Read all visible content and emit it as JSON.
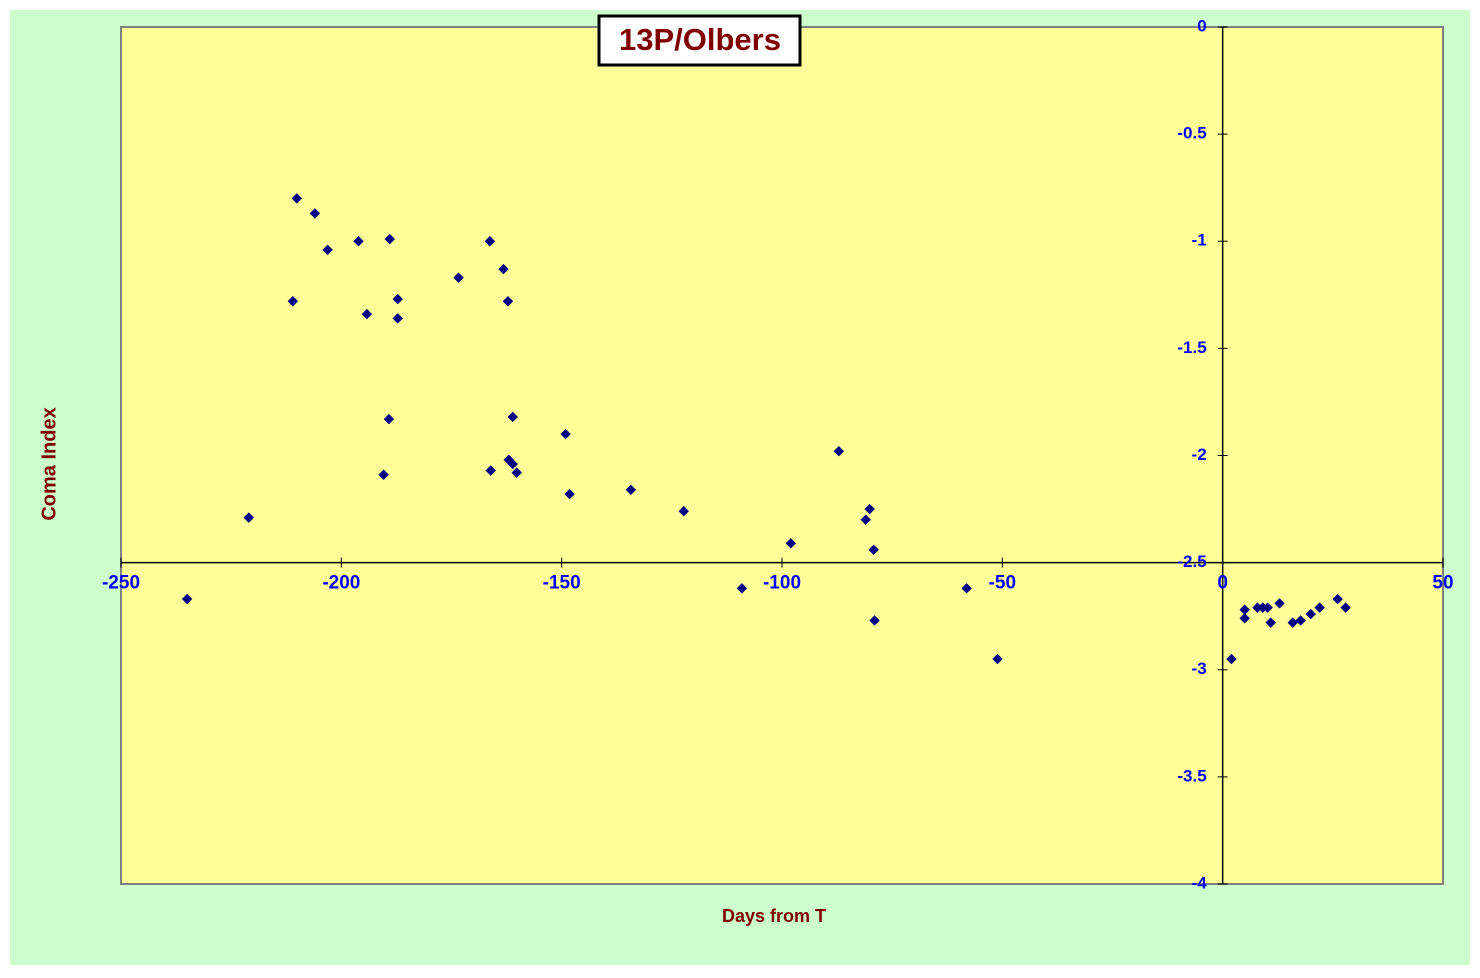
{
  "chart_data": {
    "type": "scatter",
    "title": "13P/Olbers",
    "x_label": "Days from T",
    "y_label": "Coma Index",
    "xlim": [
      -250,
      50
    ],
    "ylim": [
      -4,
      0
    ],
    "xticks": [
      -250,
      -200,
      -150,
      -100,
      -50,
      0,
      50
    ],
    "yticks": [
      0,
      -0.5,
      -1,
      -1.5,
      -2,
      -2.5,
      -3,
      -3.5,
      -4
    ],
    "x_axis_crosses_y": -2.5,
    "y_axis_crosses_x": 0,
    "series": [
      {
        "color": "#000080",
        "x": [
          -235,
          -221,
          -211,
          -210.1,
          -206,
          -203.1,
          -196.1,
          -194.2,
          -190.4,
          -189.2,
          -189,
          -187.2,
          -187.2,
          -173.4,
          -166.3,
          -166.1,
          -163.2,
          -162.2,
          -162,
          -161.1,
          -161.1,
          -160.2,
          -149.1,
          -148.2,
          -134.3,
          -122.3,
          -109.1,
          -98,
          -87.1,
          -81,
          -80.1,
          -79.2,
          -79,
          -58.1,
          -51.1,
          2,
          5,
          5,
          7.9,
          9.1,
          10.2,
          10.9,
          12.9,
          15.9,
          17.7,
          20,
          22,
          26.1,
          27.9
        ],
        "values": [
          -2.67,
          -2.29,
          -1.28,
          -0.8,
          -0.87,
          -1.04,
          -1,
          -1.34,
          -2.09,
          -1.83,
          -0.99,
          -1.27,
          -1.36,
          -1.17,
          -1,
          -2.07,
          -1.13,
          -1.28,
          -2.02,
          -2.04,
          -1.82,
          -2.08,
          -1.9,
          -2.18,
          -2.16,
          -2.26,
          -2.62,
          -2.41,
          -1.98,
          -2.3,
          -2.25,
          -2.44,
          -2.77,
          -2.62,
          -2.95,
          -2.95,
          -2.72,
          -2.76,
          -2.71,
          -2.71,
          -2.71,
          -2.78,
          -2.69,
          -2.78,
          -2.77,
          -2.74,
          -2.71,
          -2.67,
          -2.71
        ]
      }
    ]
  }
}
